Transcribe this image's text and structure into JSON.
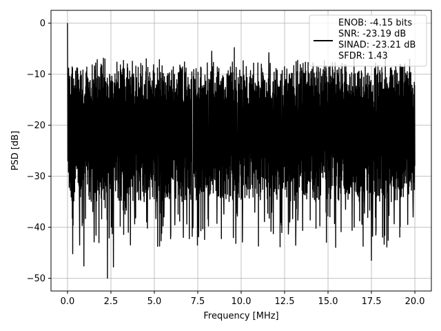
{
  "chart_data": {
    "type": "line",
    "title": "",
    "xlabel": "Frequency [MHz]",
    "ylabel": "PSD [dB]",
    "xlim": [
      -0.95,
      20.95
    ],
    "ylim": [
      -52.5,
      2.5
    ],
    "xticks": [
      0.0,
      2.5,
      5.0,
      7.5,
      10.0,
      12.5,
      15.0,
      17.5,
      20.0
    ],
    "xtick_labels": [
      "0.0",
      "2.5",
      "5.0",
      "7.5",
      "10.0",
      "12.5",
      "15.0",
      "17.5",
      "20.0"
    ],
    "yticks": [
      0,
      -10,
      -20,
      -30,
      -40,
      -50
    ],
    "ytick_labels": [
      "0",
      "−10",
      "−20",
      "−30",
      "−40",
      "−50"
    ],
    "grid": true,
    "legend_position": "top-right",
    "series_color": "#000000",
    "series": [
      {
        "name": "",
        "x_start": 0.0,
        "x_end": 20.0,
        "peak": {
          "x": 0.0,
          "y": 0.0
        },
        "noise_floor_mean": -18,
        "noise_band": [
          -30,
          -8
        ],
        "minimum": {
          "x": 2.3,
          "y": -50.0
        },
        "notable_dips": [
          {
            "x": 0.3,
            "y": -45.2
          },
          {
            "x": 0.7,
            "y": -43.5
          },
          {
            "x": 0.95,
            "y": -47.6
          },
          {
            "x": 2.3,
            "y": -50.0
          },
          {
            "x": 2.65,
            "y": -47.8
          },
          {
            "x": 3.5,
            "y": -41.0
          },
          {
            "x": 4.6,
            "y": -40.2
          },
          {
            "x": 5.3,
            "y": -43.7
          },
          {
            "x": 11.0,
            "y": -43.7
          },
          {
            "x": 17.5,
            "y": -46.5
          },
          {
            "x": 12.8,
            "y": -39.0
          },
          {
            "x": 15.0,
            "y": -37.8
          },
          {
            "x": 19.9,
            "y": -38.0
          }
        ],
        "notable_peaks": [
          {
            "x": 9.6,
            "y": -4.8
          },
          {
            "x": 8.3,
            "y": -5.5
          },
          {
            "x": 11.6,
            "y": -5.8
          },
          {
            "x": 16.5,
            "y": -6.0
          }
        ]
      }
    ],
    "legend": {
      "lines": [
        "ENOB: -4.15 bits",
        "SNR: -23.19 dB",
        "SINAD: -23.21 dB",
        "SFDR: 1.43"
      ]
    }
  }
}
